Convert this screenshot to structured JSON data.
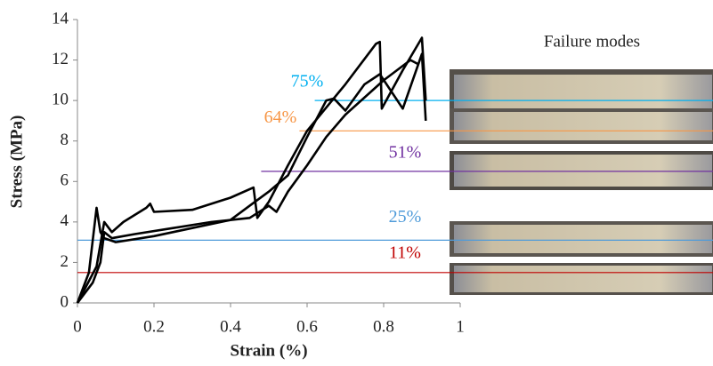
{
  "chart_data": {
    "type": "line",
    "x_label": "Strain (%)",
    "y_label": "Stress (MPa)",
    "xlim": [
      0,
      1
    ],
    "ylim": [
      0,
      14
    ],
    "xticks": [
      0,
      0.2,
      0.4,
      0.6,
      0.8,
      1
    ],
    "yticks": [
      0,
      2,
      4,
      6,
      8,
      10,
      12,
      14
    ],
    "series": [
      {
        "color": "#000000",
        "x": [
          0,
          0.03,
          0.05,
          0.06,
          0.07,
          0.1,
          0.2,
          0.3,
          0.4,
          0.45,
          0.5,
          0.55,
          0.6,
          0.65,
          0.67,
          0.7,
          0.75,
          0.79,
          0.85,
          0.9,
          0.91
        ],
        "values": [
          0,
          1.5,
          4.7,
          3.5,
          3.2,
          3.0,
          3.3,
          3.7,
          4.1,
          4.8,
          5.5,
          6.3,
          8.2,
          10.0,
          10.1,
          9.5,
          10.8,
          11.3,
          9.6,
          12.3,
          9.0
        ]
      },
      {
        "color": "#000000",
        "x": [
          0,
          0.05,
          0.07,
          0.09,
          0.12,
          0.18,
          0.19,
          0.2,
          0.3,
          0.4,
          0.46,
          0.47,
          0.5,
          0.55,
          0.6,
          0.7,
          0.78,
          0.79,
          0.795,
          0.85,
          0.9,
          0.91
        ],
        "values": [
          0,
          1.8,
          4.0,
          3.5,
          4.0,
          4.7,
          4.9,
          4.5,
          4.6,
          5.2,
          5.7,
          4.2,
          5.0,
          6.8,
          8.5,
          10.8,
          12.8,
          12.9,
          9.6,
          11.5,
          13.1,
          10.0
        ]
      },
      {
        "color": "#000000",
        "x": [
          0,
          0.04,
          0.06,
          0.07,
          0.09,
          0.15,
          0.25,
          0.35,
          0.45,
          0.5,
          0.52,
          0.55,
          0.6,
          0.65,
          0.7,
          0.8,
          0.87,
          0.89
        ],
        "values": [
          0,
          1.0,
          2.0,
          3.5,
          3.2,
          3.4,
          3.7,
          4.0,
          4.2,
          4.8,
          4.5,
          5.5,
          6.8,
          8.2,
          9.3,
          11.0,
          12.0,
          11.8
        ]
      }
    ],
    "annotations": [
      {
        "label": "75%",
        "value": 10.0,
        "x_start": 0.62,
        "color": "#00b0f0"
      },
      {
        "label": "64%",
        "value": 8.5,
        "x_start": 0.58,
        "color": "#f79646"
      },
      {
        "label": "51%",
        "value": 6.5,
        "x_start": 0.48,
        "color": "#7030a0"
      },
      {
        "label": "25%",
        "value": 3.1,
        "x_start": 0,
        "color": "#4f9bd9"
      },
      {
        "label": "11%",
        "value": 1.5,
        "x_start": 0,
        "color": "#c00000"
      }
    ],
    "photo_title": "Failure modes"
  }
}
